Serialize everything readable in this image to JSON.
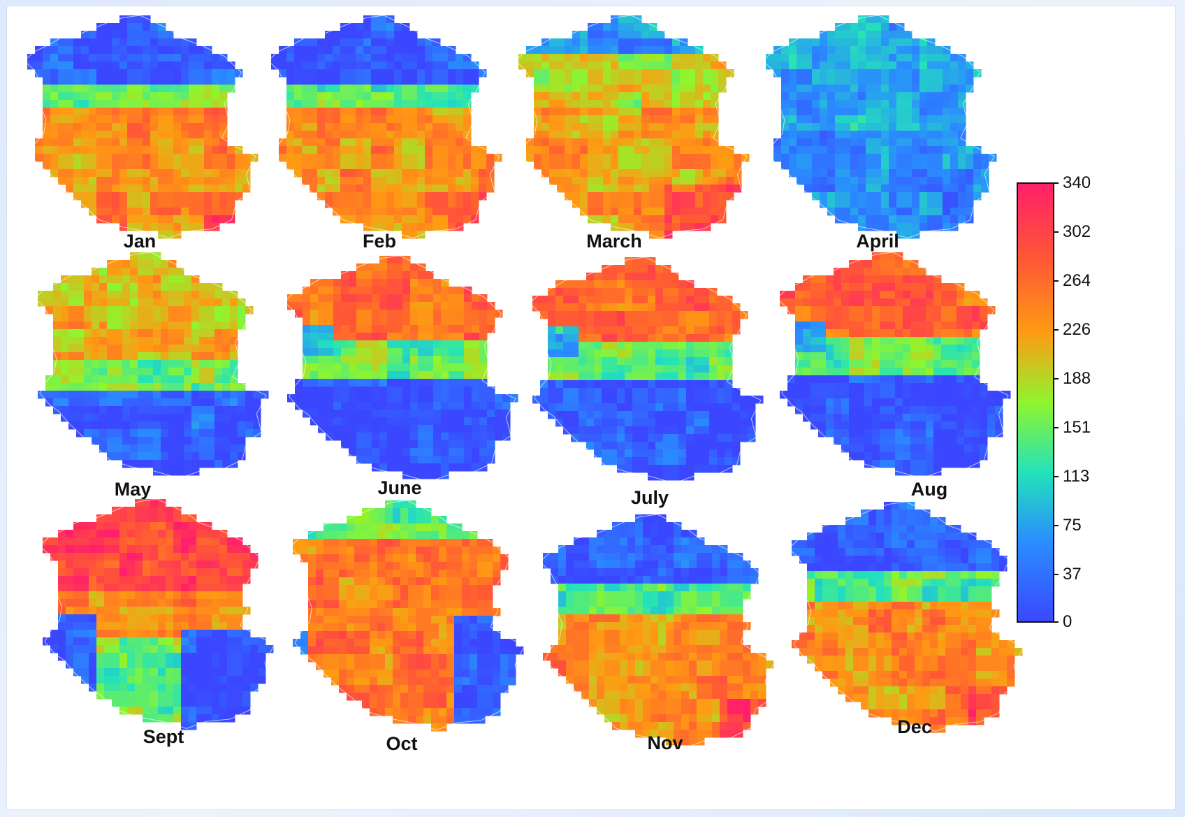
{
  "colors": {
    "page_background": "#e3ecfb",
    "panel_background": "#ffffff"
  },
  "maps": [
    {
      "label": "Jan",
      "pattern": "north_low_south_high"
    },
    {
      "label": "Feb",
      "pattern": "north_low_south_high"
    },
    {
      "label": "March",
      "pattern": "mostly_high_north_mid"
    },
    {
      "label": "April",
      "pattern": "mostly_low"
    },
    {
      "label": "May",
      "pattern": "north_mid_high_south_low"
    },
    {
      "label": "June",
      "pattern": "north_high_south_low"
    },
    {
      "label": "July",
      "pattern": "north_high_south_low"
    },
    {
      "label": "Aug",
      "pattern": "north_high_south_low"
    },
    {
      "label": "Sept",
      "pattern": "very_high_north_southeast_low"
    },
    {
      "label": "Oct",
      "pattern": "high_east_low"
    },
    {
      "label": "Nov",
      "pattern": "north_low_south_high"
    },
    {
      "label": "Dec",
      "pattern": "north_low_south_high"
    }
  ],
  "colorbar": {
    "ticks": [
      "340",
      "302",
      "264",
      "226",
      "188",
      "151",
      "113",
      "75",
      "37",
      "0"
    ],
    "colors": [
      "#ff1f6b",
      "#ff5a34",
      "#ff9a13",
      "#8ff52e",
      "#23e2ba",
      "#2a8cff",
      "#3b47ff"
    ]
  }
}
